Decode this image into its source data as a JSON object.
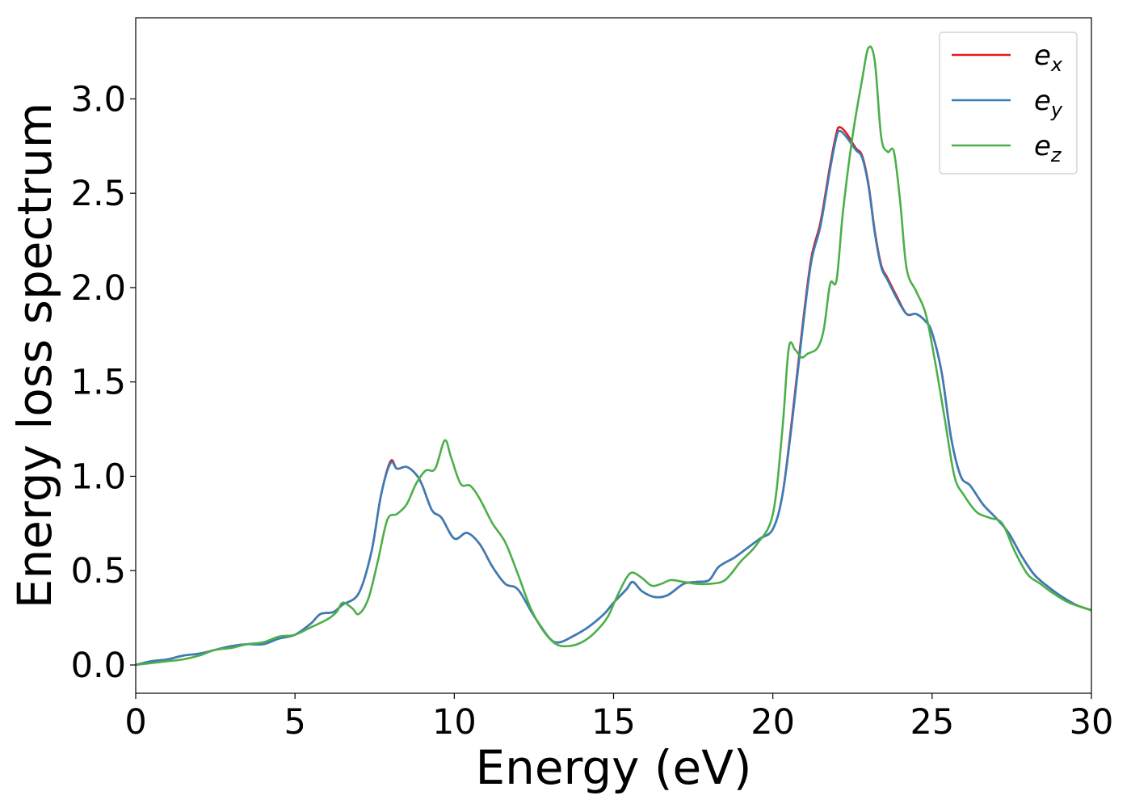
{
  "chart_data": {
    "type": "line",
    "xlabel": "Energy (eV)",
    "ylabel": "Energy loss spectrum",
    "xlim": [
      0,
      30
    ],
    "ylim": [
      -0.15,
      3.43
    ],
    "xticks": [
      "0",
      "5",
      "10",
      "15",
      "20",
      "25",
      "30"
    ],
    "yticks": [
      "0.0",
      "0.5",
      "1.0",
      "1.5",
      "2.0",
      "2.5",
      "3.0"
    ],
    "grid": false,
    "legend_position": "top-right",
    "series": [
      {
        "name": "e",
        "subscript": "x",
        "color": "#e41a1c",
        "x": [
          0,
          0.5,
          1,
          1.5,
          2,
          2.5,
          3,
          3.5,
          4,
          4.5,
          5,
          5.5,
          5.8,
          6.2,
          6.5,
          7,
          7.4,
          7.7,
          8,
          8.2,
          8.5,
          8.8,
          9,
          9.3,
          9.6,
          10,
          10.4,
          10.8,
          11.2,
          11.6,
          12,
          12.5,
          13,
          13.3,
          13.7,
          14.2,
          14.7,
          15,
          15.4,
          15.6,
          15.9,
          16.3,
          16.7,
          17.2,
          17.6,
          18,
          18.3,
          18.8,
          19.2,
          19.6,
          20,
          20.3,
          20.6,
          20.9,
          21.2,
          21.5,
          21.8,
          22,
          22.1,
          22.3,
          22.6,
          22.8,
          23,
          23.2,
          23.4,
          23.6,
          23.9,
          24.2,
          24.5,
          24.8,
          25,
          25.3,
          25.6,
          25.9,
          26.2,
          26.6,
          27,
          27.4,
          27.8,
          28.2,
          28.6,
          29,
          29.5,
          30
        ],
        "y": [
          0,
          0.02,
          0.03,
          0.05,
          0.06,
          0.08,
          0.1,
          0.11,
          0.11,
          0.14,
          0.16,
          0.22,
          0.27,
          0.28,
          0.32,
          0.38,
          0.6,
          0.9,
          1.08,
          1.04,
          1.05,
          1.01,
          0.95,
          0.82,
          0.78,
          0.67,
          0.7,
          0.64,
          0.52,
          0.43,
          0.4,
          0.26,
          0.14,
          0.12,
          0.15,
          0.2,
          0.27,
          0.33,
          0.4,
          0.44,
          0.39,
          0.36,
          0.37,
          0.43,
          0.44,
          0.45,
          0.52,
          0.57,
          0.62,
          0.67,
          0.72,
          0.9,
          1.3,
          1.75,
          2.15,
          2.35,
          2.65,
          2.82,
          2.85,
          2.82,
          2.74,
          2.7,
          2.55,
          2.3,
          2.12,
          2.05,
          1.95,
          1.86,
          1.86,
          1.82,
          1.76,
          1.55,
          1.2,
          1.0,
          0.95,
          0.85,
          0.78,
          0.7,
          0.58,
          0.48,
          0.42,
          0.37,
          0.32,
          0.29
        ]
      },
      {
        "name": "e",
        "subscript": "y",
        "color": "#377eb8",
        "x": [
          0,
          0.5,
          1,
          1.5,
          2,
          2.5,
          3,
          3.5,
          4,
          4.5,
          5,
          5.5,
          5.8,
          6.2,
          6.5,
          7,
          7.4,
          7.7,
          8,
          8.2,
          8.5,
          8.8,
          9,
          9.3,
          9.6,
          10,
          10.4,
          10.8,
          11.2,
          11.6,
          12,
          12.5,
          13,
          13.3,
          13.7,
          14.2,
          14.7,
          15,
          15.4,
          15.6,
          15.9,
          16.3,
          16.7,
          17.2,
          17.6,
          18,
          18.3,
          18.8,
          19.2,
          19.6,
          20,
          20.3,
          20.6,
          20.9,
          21.2,
          21.5,
          21.8,
          22,
          22.1,
          22.3,
          22.6,
          22.8,
          23,
          23.2,
          23.4,
          23.6,
          23.9,
          24.2,
          24.5,
          24.8,
          25,
          25.3,
          25.6,
          25.9,
          26.2,
          26.6,
          27,
          27.4,
          27.8,
          28.2,
          28.6,
          29,
          29.5,
          30
        ],
        "y": [
          0,
          0.02,
          0.03,
          0.05,
          0.06,
          0.08,
          0.1,
          0.11,
          0.11,
          0.14,
          0.16,
          0.22,
          0.27,
          0.28,
          0.32,
          0.38,
          0.6,
          0.9,
          1.07,
          1.04,
          1.05,
          1.01,
          0.95,
          0.82,
          0.78,
          0.67,
          0.7,
          0.64,
          0.52,
          0.43,
          0.4,
          0.26,
          0.14,
          0.12,
          0.15,
          0.2,
          0.27,
          0.33,
          0.4,
          0.44,
          0.39,
          0.36,
          0.37,
          0.43,
          0.44,
          0.45,
          0.52,
          0.57,
          0.62,
          0.67,
          0.72,
          0.9,
          1.28,
          1.73,
          2.13,
          2.33,
          2.63,
          2.8,
          2.83,
          2.8,
          2.73,
          2.69,
          2.54,
          2.29,
          2.11,
          2.04,
          1.94,
          1.86,
          1.86,
          1.82,
          1.76,
          1.55,
          1.2,
          1.0,
          0.95,
          0.85,
          0.78,
          0.7,
          0.58,
          0.48,
          0.42,
          0.37,
          0.32,
          0.29
        ]
      },
      {
        "name": "e",
        "subscript": "z",
        "color": "#4daf4a",
        "x": [
          0,
          0.5,
          1,
          1.5,
          2,
          2.5,
          3,
          3.5,
          4,
          4.5,
          5,
          5.5,
          6,
          6.3,
          6.5,
          6.8,
          7,
          7.3,
          7.6,
          7.9,
          8.2,
          8.5,
          8.8,
          9.1,
          9.4,
          9.7,
          9.9,
          10.2,
          10.5,
          10.8,
          11.2,
          11.6,
          12,
          12.4,
          12.8,
          13.2,
          13.6,
          14,
          14.4,
          14.8,
          15.1,
          15.4,
          15.6,
          15.9,
          16.2,
          16.5,
          16.8,
          17.2,
          17.6,
          18,
          18.5,
          19,
          19.5,
          20,
          20.3,
          20.5,
          20.7,
          20.9,
          21.1,
          21.4,
          21.6,
          21.8,
          22,
          22.2,
          22.5,
          22.8,
          23,
          23.2,
          23.4,
          23.6,
          23.8,
          24,
          24.2,
          24.5,
          24.8,
          25.1,
          25.4,
          25.7,
          26,
          26.4,
          26.8,
          27.2,
          27.6,
          28,
          28.4,
          28.8,
          29.3,
          30
        ],
        "y": [
          0,
          0.01,
          0.02,
          0.03,
          0.05,
          0.08,
          0.09,
          0.11,
          0.12,
          0.15,
          0.16,
          0.2,
          0.24,
          0.28,
          0.33,
          0.3,
          0.27,
          0.35,
          0.55,
          0.77,
          0.8,
          0.85,
          0.96,
          1.03,
          1.04,
          1.19,
          1.1,
          0.96,
          0.95,
          0.88,
          0.75,
          0.65,
          0.48,
          0.3,
          0.18,
          0.11,
          0.1,
          0.12,
          0.17,
          0.25,
          0.36,
          0.46,
          0.49,
          0.46,
          0.42,
          0.43,
          0.45,
          0.44,
          0.43,
          0.43,
          0.45,
          0.55,
          0.64,
          0.8,
          1.25,
          1.68,
          1.67,
          1.63,
          1.65,
          1.68,
          1.78,
          2.02,
          2.04,
          2.4,
          2.8,
          3.1,
          3.27,
          3.2,
          2.8,
          2.72,
          2.72,
          2.45,
          2.1,
          1.98,
          1.86,
          1.6,
          1.3,
          1.0,
          0.9,
          0.81,
          0.78,
          0.75,
          0.6,
          0.48,
          0.43,
          0.38,
          0.33,
          0.29
        ]
      }
    ]
  }
}
